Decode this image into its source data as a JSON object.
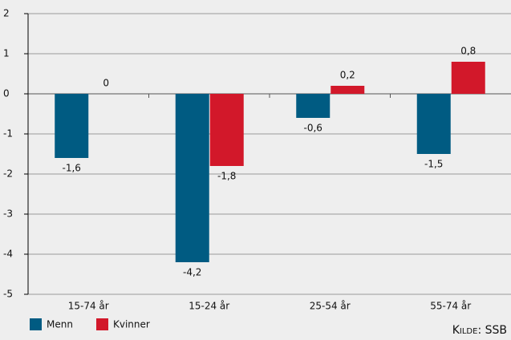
{
  "chart_data": {
    "type": "bar",
    "categories": [
      "15-74 år",
      "15-24 år",
      "25-54 år",
      "55-74 år"
    ],
    "series": [
      {
        "name": "Menn",
        "color": "#005b82",
        "values": [
          -1.6,
          -4.2,
          -0.6,
          -1.5
        ],
        "value_labels": [
          "-1,6",
          "-4,2",
          "-0,6",
          "-1,5"
        ]
      },
      {
        "name": "Kvinner",
        "color": "#d2182a",
        "values": [
          0,
          -1.8,
          0.2,
          0.8
        ],
        "value_labels": [
          "0",
          "-1,8",
          "0,2",
          "0,8"
        ]
      }
    ],
    "ylim": [
      -5,
      2
    ],
    "yticks": [
      -5,
      -4,
      -3,
      -2,
      -1,
      0,
      1,
      2
    ],
    "grid": true,
    "legend": "bottom-left",
    "source": "Kilde: SSB"
  }
}
